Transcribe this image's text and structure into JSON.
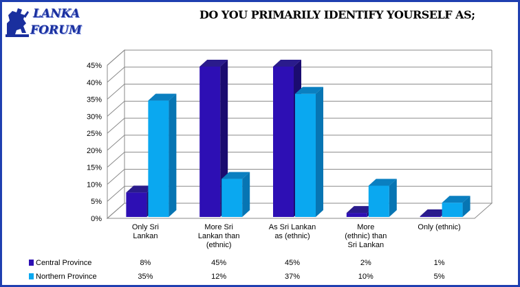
{
  "brand": {
    "line1": "LANKA",
    "line2": "FORUM"
  },
  "colors": {
    "central_front": "#2d0fb4",
    "central_top": "#2a1b8c",
    "central_side": "#1b0c70",
    "northern_front": "#0aa8f0",
    "northern_top": "#0a7fc0",
    "northern_side": "#0775b3",
    "frame": "#1f3fb0"
  },
  "chart_data": {
    "type": "bar",
    "title": "DO YOU PRIMARILY IDENTIFY YOURSELF AS;",
    "categories": [
      [
        "Only Sri",
        "Lankan"
      ],
      [
        "More Sri",
        "Lankan than",
        "(ethnic)"
      ],
      [
        "As Sri Lankan",
        "as (ethnic)"
      ],
      [
        "More",
        "(ethnic) than",
        "Sri Lankan"
      ],
      [
        "Only (ethnic)"
      ]
    ],
    "series": [
      {
        "name": "Central Province",
        "values": [
          8,
          45,
          45,
          2,
          1
        ],
        "labels": [
          "8%",
          "45%",
          "45%",
          "2%",
          "1%"
        ]
      },
      {
        "name": "Northern Province",
        "values": [
          35,
          12,
          37,
          10,
          5
        ],
        "labels": [
          "35%",
          "12%",
          "37%",
          "10%",
          "5%"
        ]
      }
    ],
    "yticks": [
      "0%",
      "5%",
      "10%",
      "15%",
      "20%",
      "25%",
      "30%",
      "35%",
      "40%",
      "45%"
    ],
    "ylim": [
      0,
      45
    ],
    "grid": true,
    "legend": "data-table"
  }
}
